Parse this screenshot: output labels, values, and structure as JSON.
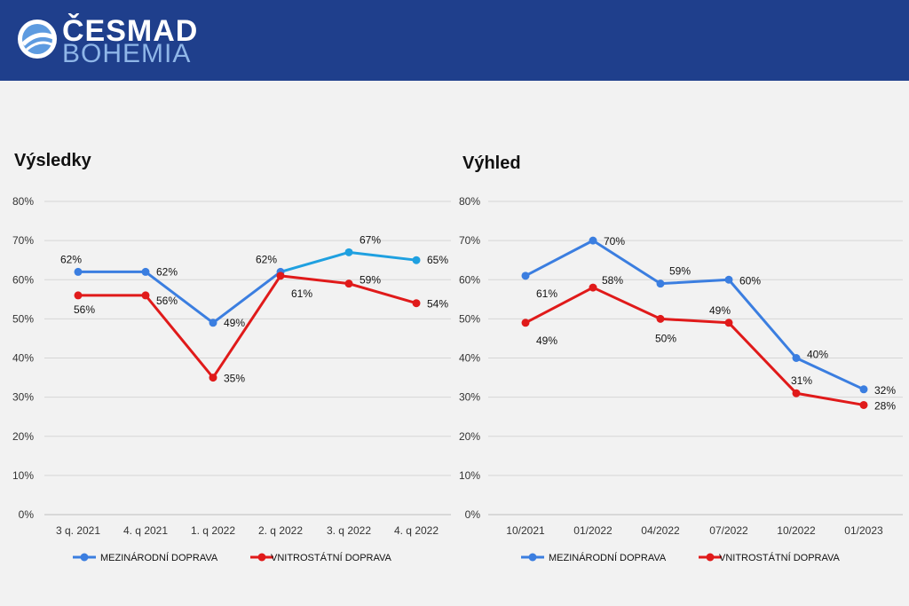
{
  "brand": {
    "name_top": "ČESMAD",
    "name_bottom": "BOHEMIA"
  },
  "colors": {
    "header": "#1f3f8c",
    "blue": "#3b7ee0",
    "blue_light": "#1fa0e0",
    "red": "#e01a1a"
  },
  "chart_data": [
    {
      "type": "line",
      "title": "Výsledky",
      "categories": [
        "3 q. 2021",
        "4. q 2021",
        "1. q 2022",
        "2. q 2022",
        "3. q 2022",
        "4. q 2022"
      ],
      "ylim": [
        0,
        80
      ],
      "yticks": [
        "0%",
        "10%",
        "20%",
        "30%",
        "40%",
        "50%",
        "60%",
        "70%",
        "80%"
      ],
      "grid": true,
      "legend": "bottom",
      "series": [
        {
          "name": "MEZINÁRODNÍ DOPRAVA",
          "values": [
            62,
            62,
            49,
            62,
            67,
            65
          ],
          "labels": [
            "62%",
            "62%",
            "49%",
            "62%",
            "67%",
            "65%"
          ]
        },
        {
          "name": "VNITROSTÁTNÍ DOPRAVA",
          "values": [
            56,
            56,
            35,
            61,
            59,
            54
          ],
          "labels": [
            "56%",
            "56%",
            "35%",
            "61%",
            "59%",
            "54%"
          ]
        }
      ]
    },
    {
      "type": "line",
      "title": "Výhled",
      "categories": [
        "10/2021",
        "01/2022",
        "04/2022",
        "07/2022",
        "10/2022",
        "01/2023"
      ],
      "ylim": [
        0,
        80
      ],
      "yticks": [
        "0%",
        "10%",
        "20%",
        "30%",
        "40%",
        "50%",
        "60%",
        "70%",
        "80%"
      ],
      "grid": true,
      "legend": "bottom",
      "series": [
        {
          "name": "MEZINÁRODNÍ DOPRAVA",
          "values": [
            61,
            70,
            59,
            60,
            40,
            32
          ],
          "labels": [
            "61%",
            "70%",
            "59%",
            "60%",
            "40%",
            "32%"
          ]
        },
        {
          "name": "VNITROSTÁTNÍ DOPRAVA",
          "values": [
            49,
            58,
            50,
            49,
            31,
            28
          ],
          "labels": [
            "49%",
            "58%",
            "50%",
            "49%",
            "31%",
            "28%"
          ]
        }
      ]
    }
  ]
}
